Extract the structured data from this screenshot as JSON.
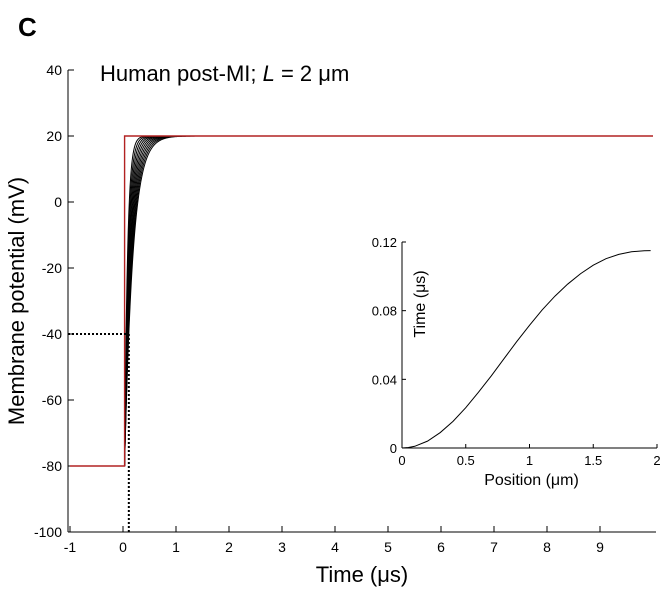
{
  "panel_label": "C",
  "chart_data": [
    {
      "type": "line",
      "title_parts": [
        "Human post-MI; ",
        "L",
        " = 2 μm"
      ],
      "xlabel": "Time (μs)",
      "ylabel": "Membrane potential (mV)",
      "xlim": [
        -1,
        10
      ],
      "ylim": [
        -100,
        40
      ],
      "xticks": [
        -1,
        0,
        1,
        2,
        3,
        4,
        5,
        6,
        7,
        8,
        9
      ],
      "yticks": [
        -100,
        -80,
        -60,
        -40,
        -20,
        0,
        20,
        40
      ],
      "grid": false,
      "colors": {
        "stimulus": "#b22222",
        "response": "#000000",
        "threshold": "#000000"
      },
      "stimulus": {
        "x": [
          -1,
          0.03,
          0.03,
          10
        ],
        "y": [
          -80,
          -80,
          20,
          20
        ]
      },
      "responses": {
        "onset": 0.03,
        "start": -80,
        "end": 20,
        "tau_values": [
          0.055,
          0.065,
          0.075,
          0.085,
          0.095,
          0.105,
          0.115,
          0.125,
          0.135,
          0.145,
          0.155
        ]
      },
      "threshold_marker": {
        "x": 0.11,
        "y": -40
      }
    },
    {
      "type": "line",
      "xlabel": "Position (μm)",
      "ylabel": "Time (μs)",
      "xlim": [
        0,
        2
      ],
      "ylim": [
        0,
        0.12
      ],
      "xticks": [
        0,
        0.5,
        1,
        1.5,
        2
      ],
      "yticks": [
        0,
        0.04,
        0.08,
        0.12
      ],
      "ytick_labels": [
        "0",
        "0.04",
        "0.08",
        "0.12"
      ],
      "x": [
        0,
        0.05,
        0.1,
        0.2,
        0.3,
        0.4,
        0.5,
        0.6,
        0.7,
        0.8,
        0.9,
        1.0,
        1.1,
        1.2,
        1.3,
        1.4,
        1.5,
        1.6,
        1.7,
        1.8,
        1.9,
        1.95
      ],
      "y": [
        0,
        0.0003,
        0.001,
        0.004,
        0.009,
        0.0155,
        0.0235,
        0.0325,
        0.042,
        0.052,
        0.062,
        0.0715,
        0.0805,
        0.0885,
        0.0955,
        0.1015,
        0.1065,
        0.1103,
        0.1128,
        0.1143,
        0.1149,
        0.115
      ]
    }
  ]
}
